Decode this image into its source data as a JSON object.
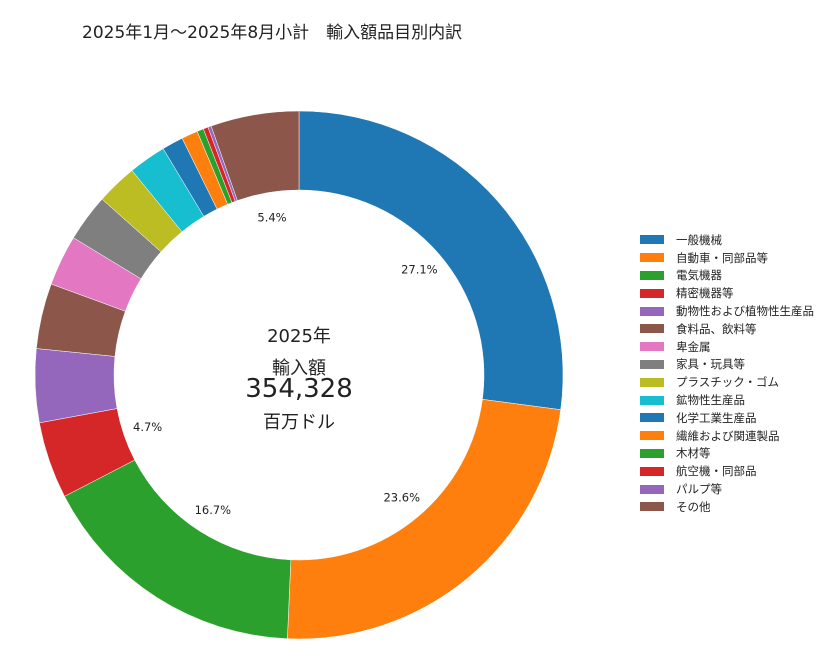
{
  "chart_data": {
    "type": "pie",
    "title": "2025年1月～2025年8月小計　輸入額品目別内訳",
    "center_text": {
      "year": "2025年",
      "label": "輸入額",
      "value": "354,328",
      "unit": "百万ドル"
    },
    "total": 354328,
    "unit": "百万ドル",
    "legend_position": "right",
    "categories": [
      "一般機械",
      "自動車・同部品等",
      "電気機器",
      "精密機器等",
      "動物性および植物性生産品",
      "食料品、飲料等",
      "卑金属",
      "家具・玩具等",
      "プラスチック・ゴム",
      "鉱物性生産品",
      "化学工業生産品",
      "繊維および関連製品",
      "木材等",
      "航空機・同部品",
      "パルプ等",
      "その他"
    ],
    "values": [
      27.1,
      23.6,
      16.7,
      4.7,
      4.5,
      4.0,
      3.1,
      2.9,
      2.5,
      2.3,
      1.3,
      1.0,
      0.4,
      0.3,
      0.2,
      5.4
    ],
    "data_labels": [
      "27.1%",
      "23.6%",
      "16.7%",
      "4.7%",
      "",
      "",
      "",
      "",
      "",
      "",
      "",
      "",
      "",
      "",
      "",
      "5.4%"
    ],
    "colors": [
      "#1f77b4",
      "#ff7f0e",
      "#2ca02c",
      "#d62728",
      "#9467bd",
      "#8c564b",
      "#e377c2",
      "#7f7f7f",
      "#bcbd22",
      "#17becf",
      "#1f77b4",
      "#ff7f0e",
      "#2ca02c",
      "#d62728",
      "#9467bd",
      "#8c564b"
    ]
  }
}
